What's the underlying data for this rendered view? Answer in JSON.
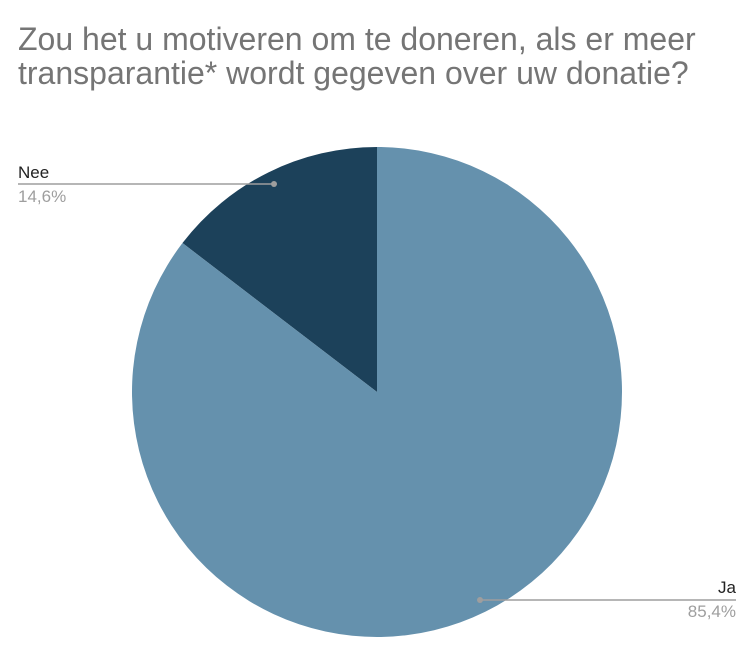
{
  "chart_data": {
    "type": "pie",
    "title": "Zou het u motiveren om te doneren, als er meer transparantie* wordt gegeven over uw donatie?",
    "slices": [
      {
        "label": "Nee",
        "value": 14.6,
        "percent_label": "14,6%",
        "color": "#1c415a"
      },
      {
        "label": "Ja",
        "value": 85.4,
        "percent_label": "85,4%",
        "color": "#6591ad"
      }
    ],
    "start_angle_deg": 0,
    "direction": "counterclockwise from top",
    "label_placement": "outside with leader lines"
  },
  "colors": {
    "title": "#757575",
    "label_name": "#222222",
    "label_percent": "#9e9e9e",
    "leader_line": "#9e9e9e"
  }
}
